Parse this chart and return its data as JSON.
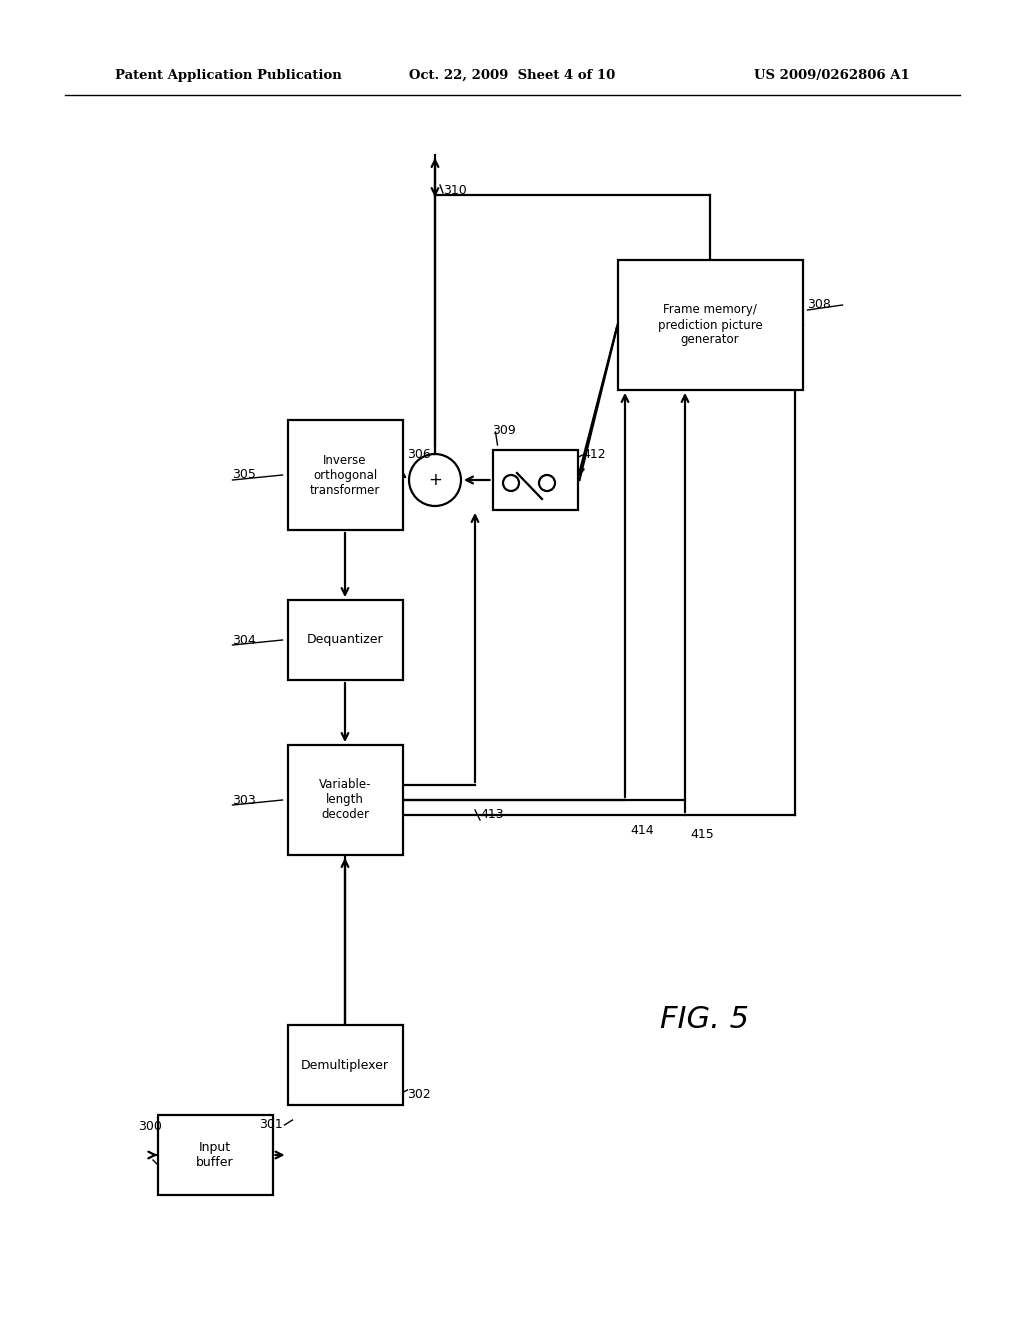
{
  "header_left": "Patent Application Publication",
  "header_center": "Oct. 22, 2009  Sheet 4 of 10",
  "header_right": "US 2009/0262806 A1",
  "fig_label": "FIG. 5",
  "bg_color": "#ffffff",
  "lw": 1.6
}
